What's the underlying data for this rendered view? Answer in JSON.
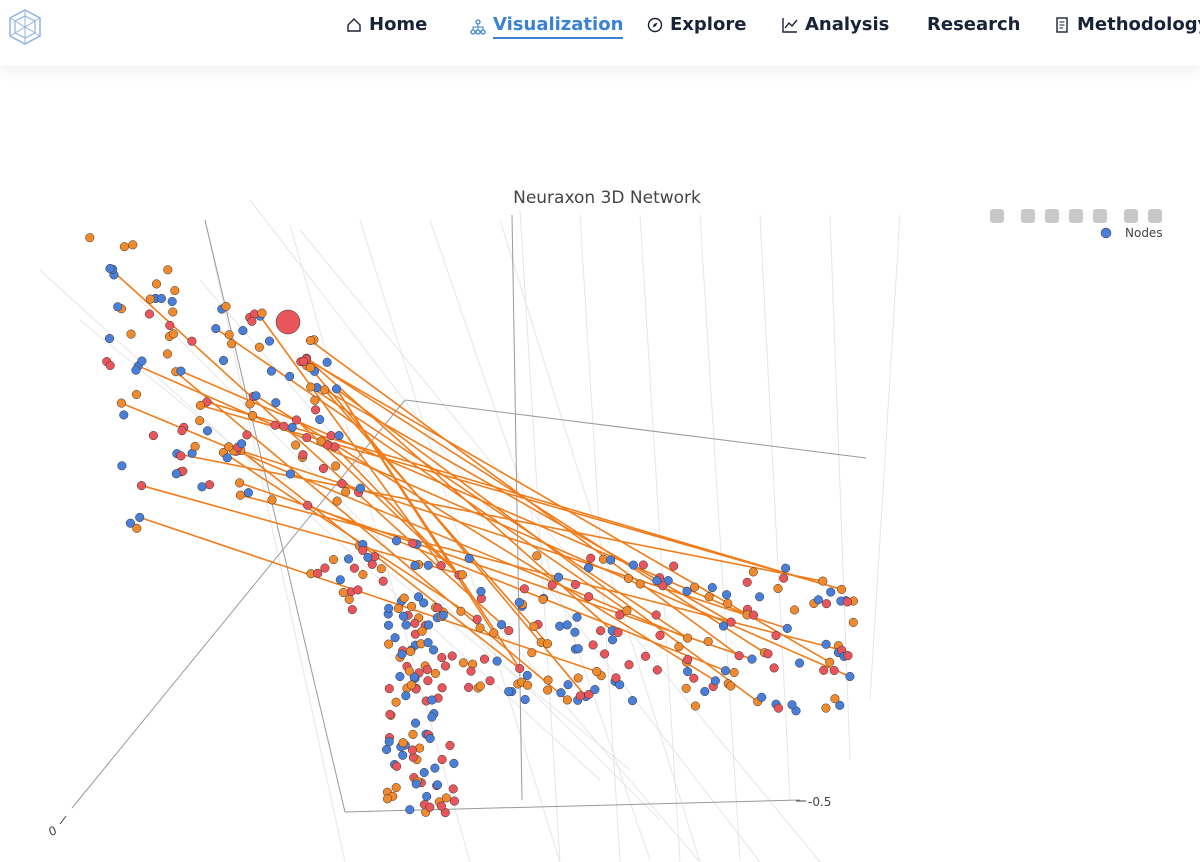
{
  "nav": {
    "items": [
      "Home",
      "Visualization",
      "Explore",
      "Analysis",
      "Research",
      "Methodology"
    ],
    "active": "Visualization"
  },
  "chart_data": {
    "type": "scatter3d",
    "title": "Neuraxon 3D Network",
    "series": [
      {
        "name": "Nodes",
        "color": "#4a7fd9"
      }
    ],
    "xticks": [
      0
    ],
    "yticks": [
      -0.5
    ]
  }
}
